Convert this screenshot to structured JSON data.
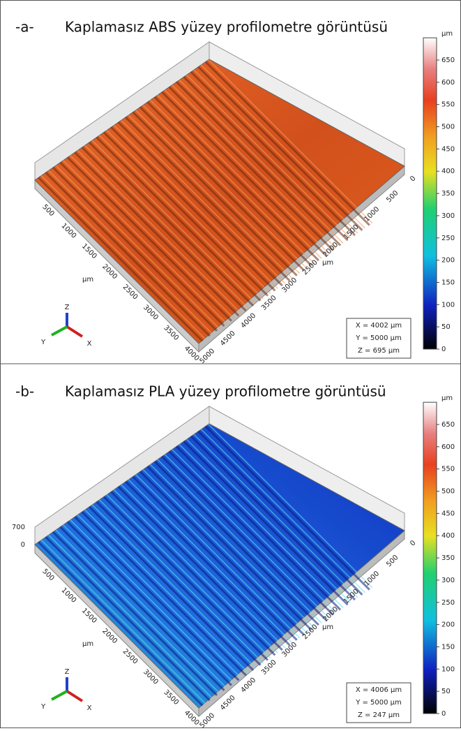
{
  "panels": [
    {
      "label": "-a-",
      "title": "Kaplamasız ABS yüzey profilometre görüntüsü",
      "unit": "µm",
      "colorbar_ticks": [
        0,
        50,
        100,
        150,
        200,
        250,
        300,
        350,
        400,
        450,
        500,
        550,
        600,
        650
      ],
      "x_ticks": [
        500,
        1000,
        1500,
        2000,
        2500,
        3000,
        3500,
        4000
      ],
      "y_ticks": [
        5000,
        4500,
        4000,
        3500,
        3000,
        2500,
        2000,
        1500,
        1000,
        500,
        0
      ],
      "x_axis": "µm",
      "y_axis": "µm",
      "info": [
        "X = 4002 µm",
        "Y = 5000 µm",
        "Z = 695 µm"
      ],
      "triad": [
        "X",
        "Y",
        "Z"
      ]
    },
    {
      "label": "-b-",
      "title": "Kaplamasız PLA yüzey profilometre görüntüsü",
      "unit": "µm",
      "colorbar_ticks": [
        0,
        50,
        100,
        150,
        200,
        250,
        300,
        350,
        400,
        450,
        500,
        550,
        600,
        650
      ],
      "x_ticks": [
        500,
        1000,
        1500,
        2000,
        2500,
        3000,
        3500,
        4000
      ],
      "y_ticks": [
        5000,
        4500,
        4000,
        3500,
        3000,
        2500,
        2000,
        1500,
        1000,
        500,
        0
      ],
      "z_ticks": [
        0,
        700
      ],
      "x_axis": "µm",
      "y_axis": "µm",
      "info": [
        "X = 4006 µm",
        "Y = 5000 µm",
        "Z = 247 µm"
      ],
      "triad": [
        "X",
        "Y",
        "Z"
      ]
    }
  ]
}
